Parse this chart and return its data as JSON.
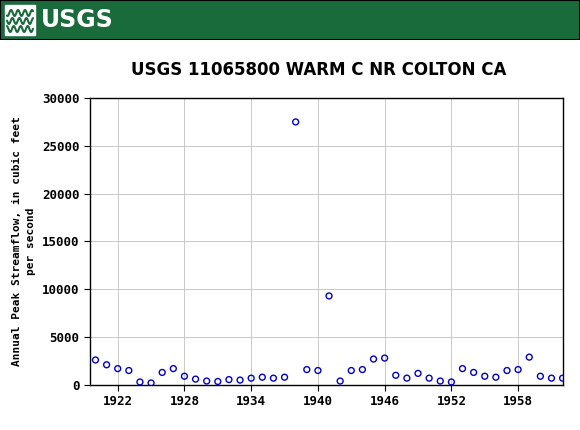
{
  "title": "USGS 11065800 WARM C NR COLTON CA",
  "ylabel_line1": "Annual Peak Streamflow, in cubic feet",
  "ylabel_line2": "per second",
  "xlim": [
    1919.5,
    1962
  ],
  "ylim": [
    0,
    30000
  ],
  "yticks": [
    0,
    5000,
    10000,
    15000,
    20000,
    25000,
    30000
  ],
  "ytick_labels": [
    "0",
    "5000",
    "10000",
    "15000",
    "20000",
    "25000",
    "30000"
  ],
  "xticks": [
    1922,
    1928,
    1934,
    1940,
    1946,
    1952,
    1958
  ],
  "xtick_labels": [
    "1922",
    "1928",
    "1934",
    "1940",
    "1946",
    "1952",
    "1958"
  ],
  "marker_color": "#0000CC",
  "background_color": "#ffffff",
  "header_color": "#1a6b3c",
  "title_fontsize": 12,
  "tick_fontsize": 9,
  "years": [
    1920,
    1921,
    1922,
    1923,
    1924,
    1925,
    1926,
    1927,
    1928,
    1929,
    1930,
    1931,
    1932,
    1933,
    1934,
    1935,
    1936,
    1937,
    1938,
    1939,
    1940,
    1941,
    1942,
    1943,
    1944,
    1945,
    1946,
    1947,
    1948,
    1949,
    1950,
    1951,
    1952,
    1953,
    1954,
    1955,
    1956,
    1957,
    1958,
    1959,
    1960,
    1961,
    1962
  ],
  "values": [
    2600,
    2100,
    1700,
    1500,
    300,
    200,
    1300,
    1700,
    900,
    600,
    400,
    350,
    550,
    500,
    700,
    800,
    700,
    800,
    27500,
    1600,
    1500,
    9300,
    400,
    1500,
    1600,
    2700,
    2800,
    1000,
    700,
    1200,
    700,
    400,
    300,
    1700,
    1300,
    900,
    800,
    1500,
    1600,
    2900,
    900,
    700,
    700
  ]
}
